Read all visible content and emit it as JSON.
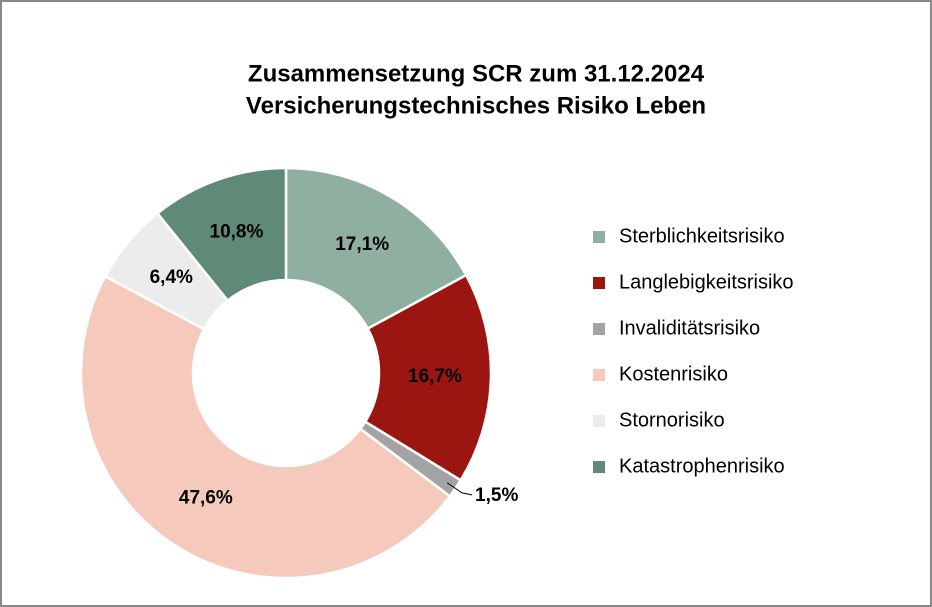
{
  "chart_data": {
    "type": "pie",
    "title": "Zusammensetzung SCR zum 31.12.2024",
    "subtitle": "Versicherungstechnisches Risiko Leben",
    "categories": [
      "Sterblichkeitsrisiko",
      "Langlebigkeitsrisiko",
      "Invaliditätsrisiko",
      "Kostenrisiko",
      "Stornorisiko",
      "Katastrophenrisiko"
    ],
    "values": [
      17.1,
      16.7,
      1.5,
      47.6,
      6.4,
      10.8
    ],
    "value_labels": [
      "17,1%",
      "16,7%",
      "1,5%",
      "47,6%",
      "6,4%",
      "10,8%"
    ],
    "colors": [
      "#8fb0a1",
      "#9b1610",
      "#a3a3a3",
      "#f5c9bc",
      "#ececec",
      "#5f8a78"
    ],
    "legend": "right"
  }
}
